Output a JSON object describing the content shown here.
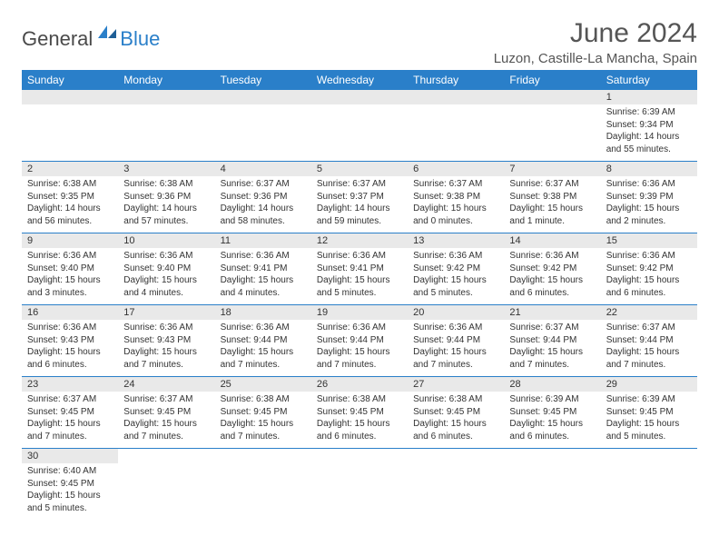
{
  "brand": {
    "part1": "General",
    "part2": "Blue"
  },
  "title": "June 2024",
  "location": "Luzon, Castille-La Mancha, Spain",
  "colors": {
    "header_bg": "#2a7fc9",
    "header_text": "#ffffff",
    "daynum_bg": "#e9e9e9",
    "text": "#333333",
    "title_text": "#555555"
  },
  "dayHeaders": [
    "Sunday",
    "Monday",
    "Tuesday",
    "Wednesday",
    "Thursday",
    "Friday",
    "Saturday"
  ],
  "weeks": [
    [
      null,
      null,
      null,
      null,
      null,
      null,
      {
        "n": "1",
        "sr": "Sunrise: 6:39 AM",
        "ss": "Sunset: 9:34 PM",
        "dl": "Daylight: 14 hours and 55 minutes."
      }
    ],
    [
      {
        "n": "2",
        "sr": "Sunrise: 6:38 AM",
        "ss": "Sunset: 9:35 PM",
        "dl": "Daylight: 14 hours and 56 minutes."
      },
      {
        "n": "3",
        "sr": "Sunrise: 6:38 AM",
        "ss": "Sunset: 9:36 PM",
        "dl": "Daylight: 14 hours and 57 minutes."
      },
      {
        "n": "4",
        "sr": "Sunrise: 6:37 AM",
        "ss": "Sunset: 9:36 PM",
        "dl": "Daylight: 14 hours and 58 minutes."
      },
      {
        "n": "5",
        "sr": "Sunrise: 6:37 AM",
        "ss": "Sunset: 9:37 PM",
        "dl": "Daylight: 14 hours and 59 minutes."
      },
      {
        "n": "6",
        "sr": "Sunrise: 6:37 AM",
        "ss": "Sunset: 9:38 PM",
        "dl": "Daylight: 15 hours and 0 minutes."
      },
      {
        "n": "7",
        "sr": "Sunrise: 6:37 AM",
        "ss": "Sunset: 9:38 PM",
        "dl": "Daylight: 15 hours and 1 minute."
      },
      {
        "n": "8",
        "sr": "Sunrise: 6:36 AM",
        "ss": "Sunset: 9:39 PM",
        "dl": "Daylight: 15 hours and 2 minutes."
      }
    ],
    [
      {
        "n": "9",
        "sr": "Sunrise: 6:36 AM",
        "ss": "Sunset: 9:40 PM",
        "dl": "Daylight: 15 hours and 3 minutes."
      },
      {
        "n": "10",
        "sr": "Sunrise: 6:36 AM",
        "ss": "Sunset: 9:40 PM",
        "dl": "Daylight: 15 hours and 4 minutes."
      },
      {
        "n": "11",
        "sr": "Sunrise: 6:36 AM",
        "ss": "Sunset: 9:41 PM",
        "dl": "Daylight: 15 hours and 4 minutes."
      },
      {
        "n": "12",
        "sr": "Sunrise: 6:36 AM",
        "ss": "Sunset: 9:41 PM",
        "dl": "Daylight: 15 hours and 5 minutes."
      },
      {
        "n": "13",
        "sr": "Sunrise: 6:36 AM",
        "ss": "Sunset: 9:42 PM",
        "dl": "Daylight: 15 hours and 5 minutes."
      },
      {
        "n": "14",
        "sr": "Sunrise: 6:36 AM",
        "ss": "Sunset: 9:42 PM",
        "dl": "Daylight: 15 hours and 6 minutes."
      },
      {
        "n": "15",
        "sr": "Sunrise: 6:36 AM",
        "ss": "Sunset: 9:42 PM",
        "dl": "Daylight: 15 hours and 6 minutes."
      }
    ],
    [
      {
        "n": "16",
        "sr": "Sunrise: 6:36 AM",
        "ss": "Sunset: 9:43 PM",
        "dl": "Daylight: 15 hours and 6 minutes."
      },
      {
        "n": "17",
        "sr": "Sunrise: 6:36 AM",
        "ss": "Sunset: 9:43 PM",
        "dl": "Daylight: 15 hours and 7 minutes."
      },
      {
        "n": "18",
        "sr": "Sunrise: 6:36 AM",
        "ss": "Sunset: 9:44 PM",
        "dl": "Daylight: 15 hours and 7 minutes."
      },
      {
        "n": "19",
        "sr": "Sunrise: 6:36 AM",
        "ss": "Sunset: 9:44 PM",
        "dl": "Daylight: 15 hours and 7 minutes."
      },
      {
        "n": "20",
        "sr": "Sunrise: 6:36 AM",
        "ss": "Sunset: 9:44 PM",
        "dl": "Daylight: 15 hours and 7 minutes."
      },
      {
        "n": "21",
        "sr": "Sunrise: 6:37 AM",
        "ss": "Sunset: 9:44 PM",
        "dl": "Daylight: 15 hours and 7 minutes."
      },
      {
        "n": "22",
        "sr": "Sunrise: 6:37 AM",
        "ss": "Sunset: 9:44 PM",
        "dl": "Daylight: 15 hours and 7 minutes."
      }
    ],
    [
      {
        "n": "23",
        "sr": "Sunrise: 6:37 AM",
        "ss": "Sunset: 9:45 PM",
        "dl": "Daylight: 15 hours and 7 minutes."
      },
      {
        "n": "24",
        "sr": "Sunrise: 6:37 AM",
        "ss": "Sunset: 9:45 PM",
        "dl": "Daylight: 15 hours and 7 minutes."
      },
      {
        "n": "25",
        "sr": "Sunrise: 6:38 AM",
        "ss": "Sunset: 9:45 PM",
        "dl": "Daylight: 15 hours and 7 minutes."
      },
      {
        "n": "26",
        "sr": "Sunrise: 6:38 AM",
        "ss": "Sunset: 9:45 PM",
        "dl": "Daylight: 15 hours and 6 minutes."
      },
      {
        "n": "27",
        "sr": "Sunrise: 6:38 AM",
        "ss": "Sunset: 9:45 PM",
        "dl": "Daylight: 15 hours and 6 minutes."
      },
      {
        "n": "28",
        "sr": "Sunrise: 6:39 AM",
        "ss": "Sunset: 9:45 PM",
        "dl": "Daylight: 15 hours and 6 minutes."
      },
      {
        "n": "29",
        "sr": "Sunrise: 6:39 AM",
        "ss": "Sunset: 9:45 PM",
        "dl": "Daylight: 15 hours and 5 minutes."
      }
    ],
    [
      {
        "n": "30",
        "sr": "Sunrise: 6:40 AM",
        "ss": "Sunset: 9:45 PM",
        "dl": "Daylight: 15 hours and 5 minutes."
      },
      null,
      null,
      null,
      null,
      null,
      null
    ]
  ]
}
